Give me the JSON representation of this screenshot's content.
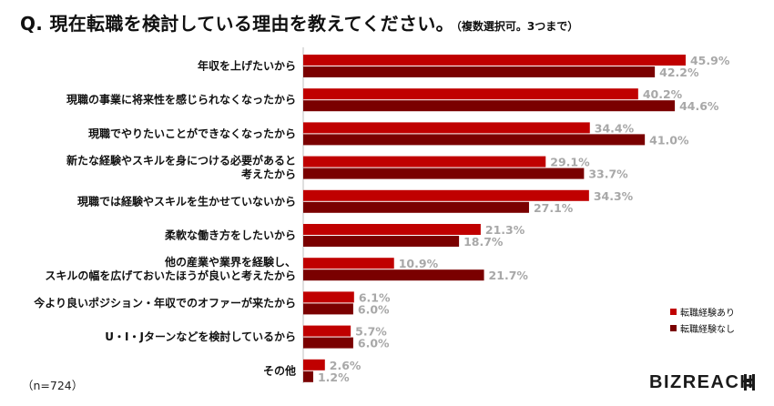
{
  "title": {
    "main": "Q. 現在転職を検討している理由を教えてください。",
    "sub": "（複数選択可。3つまで）"
  },
  "colors": {
    "series_with": "#c00000",
    "series_without": "#7a0000"
  },
  "chart_data": {
    "type": "bar",
    "orientation": "horizontal",
    "title": "Q. 現在転職を検討している理由を教えてください。（複数選択可。3つまで）",
    "unit": "%",
    "xlim": [
      0,
      50
    ],
    "grid": false,
    "legend_position": "bottom-right",
    "categories": [
      [
        "年収を上げたいから"
      ],
      [
        "現職の事業に将来性を感じられなくなったから"
      ],
      [
        "現職でやりたいことができなくなったから"
      ],
      [
        "新たな経験やスキルを身につける必要があると",
        "考えたから"
      ],
      [
        "現職では経験やスキルを生かせていないから"
      ],
      [
        "柔軟な働き方をしたいから"
      ],
      [
        "他の産業や業界を経験し、",
        "スキルの幅を広げておいたほうが良いと考えたから"
      ],
      [
        "今より良いポジション・年収でのオファーが来たから"
      ],
      [
        "U・I・Jターンなどを検討しているから"
      ],
      [
        "その他"
      ]
    ],
    "series": [
      {
        "name": "転職経験あり",
        "color": "#c00000",
        "values": [
          45.9,
          40.2,
          34.4,
          29.1,
          34.3,
          21.3,
          10.9,
          6.1,
          5.7,
          2.6
        ]
      },
      {
        "name": "転職経験なし",
        "color": "#7a0000",
        "values": [
          42.2,
          44.6,
          41.0,
          33.7,
          27.1,
          18.7,
          21.7,
          6.0,
          6.0,
          1.2
        ]
      }
    ]
  },
  "footnote": "（n=724）",
  "logo": {
    "text": "BIZREACH"
  }
}
